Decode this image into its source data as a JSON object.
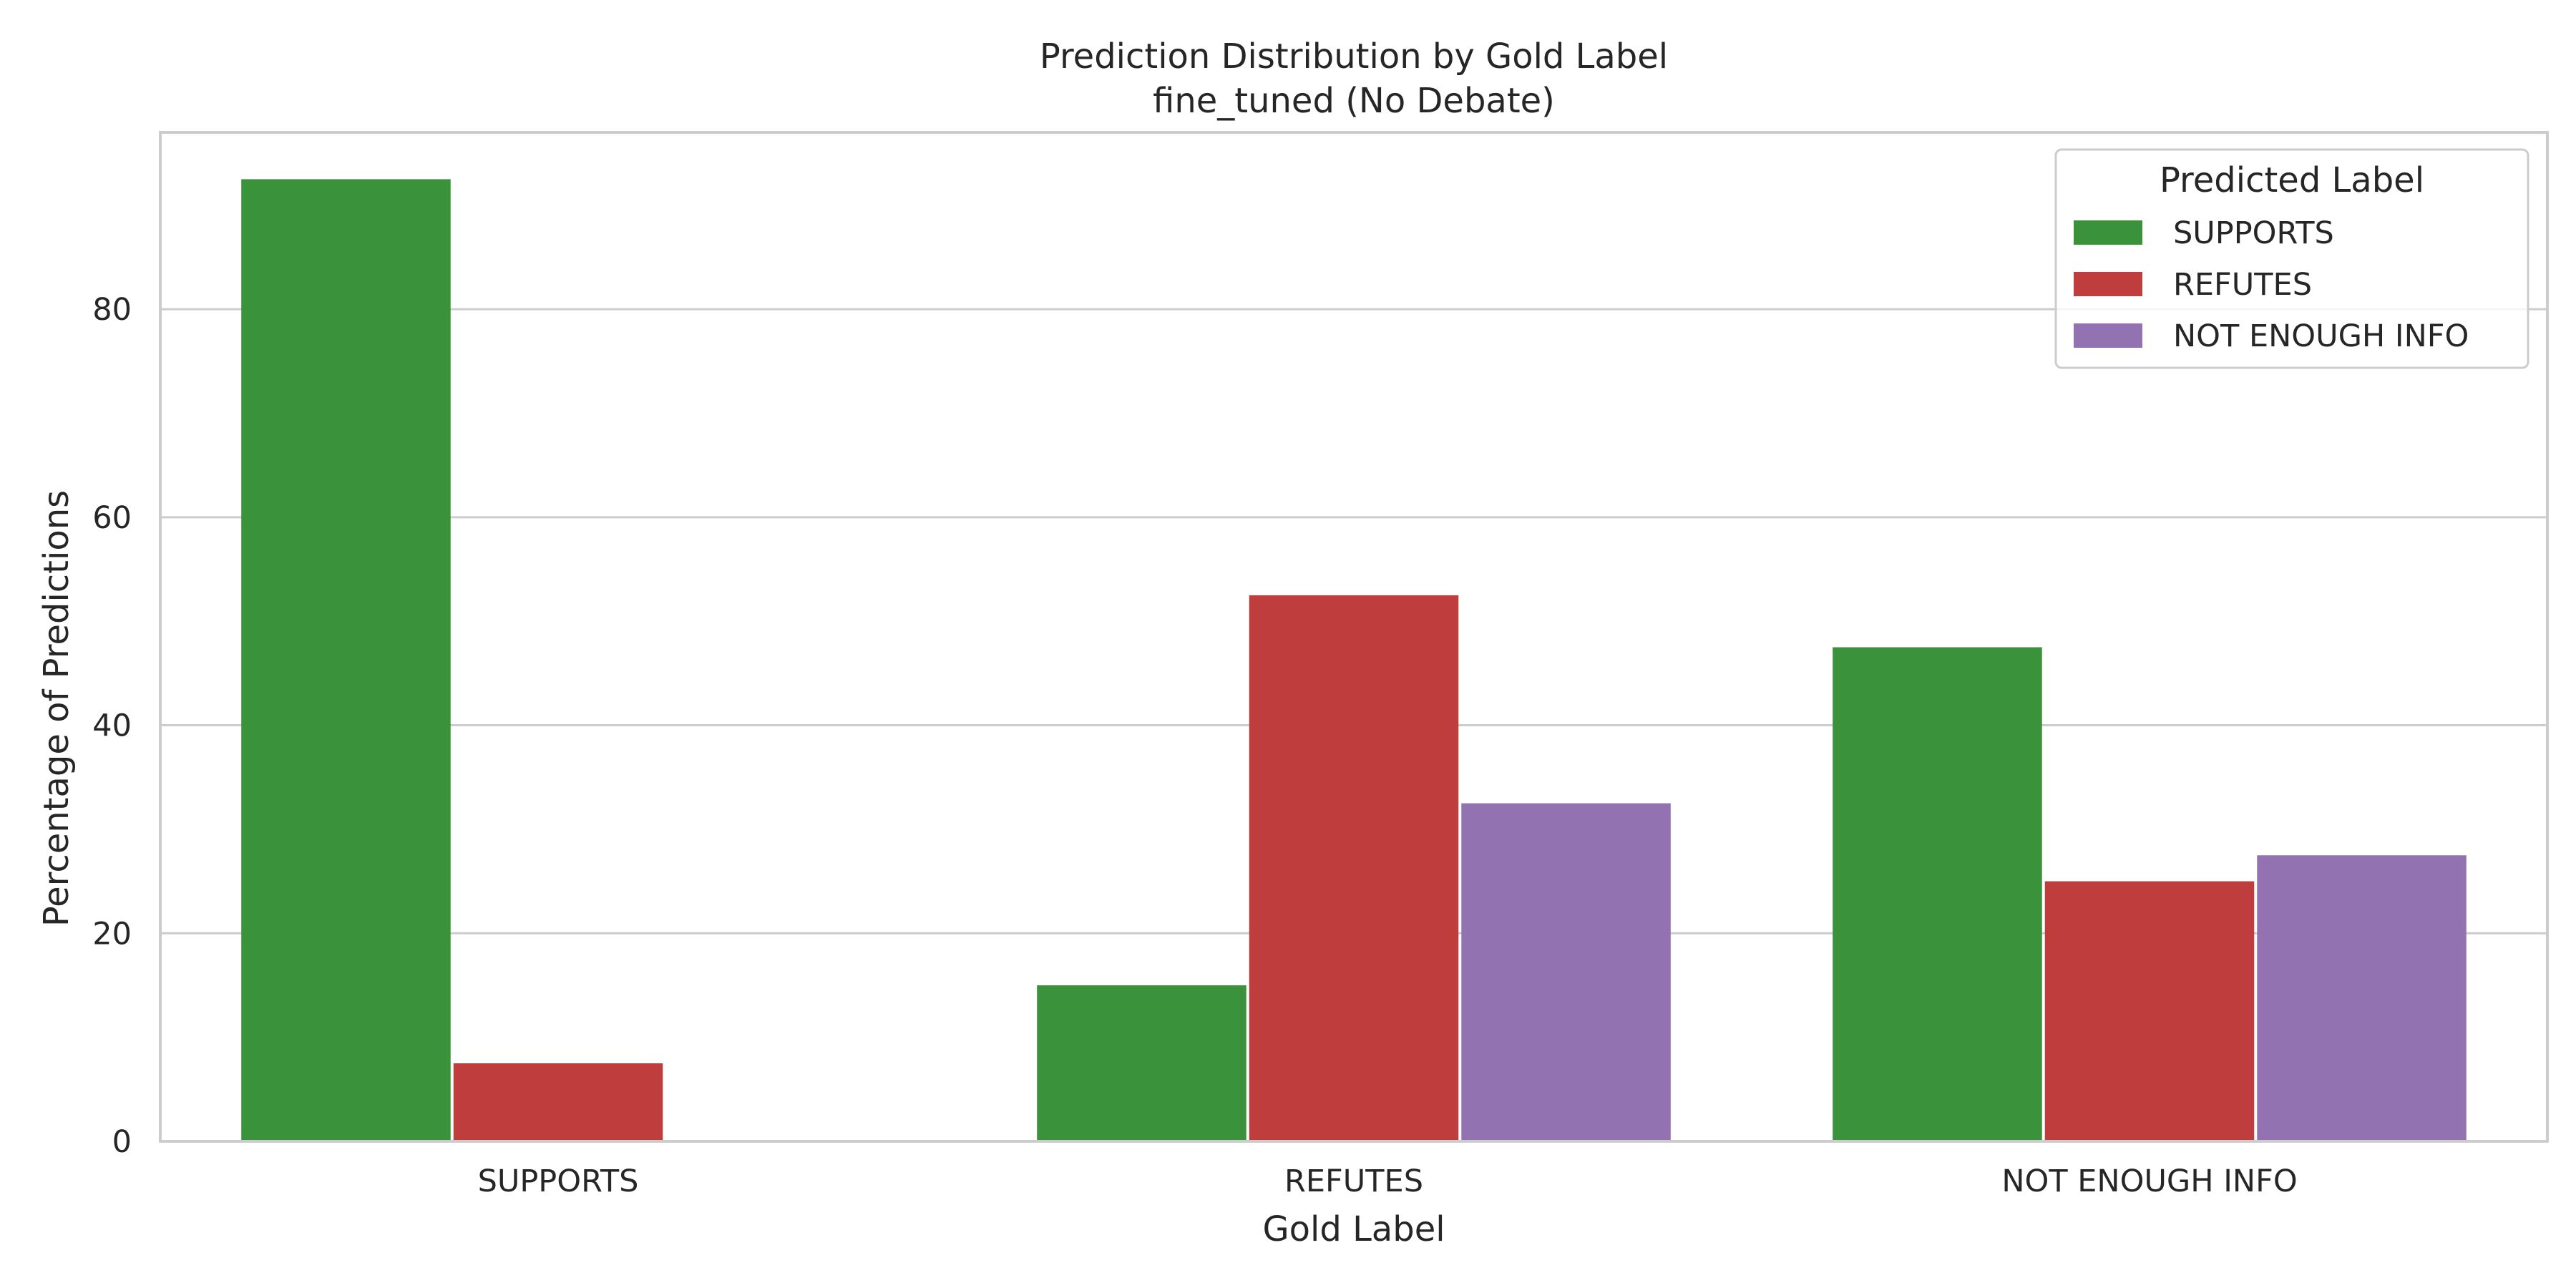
{
  "chart_data": {
    "type": "bar",
    "title": "Prediction Distribution by Gold Label",
    "subtitle": "fine_tuned (No Debate)",
    "xlabel": "Gold Label",
    "ylabel": "Percentage of Predictions",
    "categories": [
      "SUPPORTS",
      "REFUTES",
      "NOT ENOUGH INFO"
    ],
    "series": [
      {
        "name": "SUPPORTS",
        "color": "#3a923a",
        "values": [
          92.5,
          15.0,
          47.5
        ]
      },
      {
        "name": "REFUTES",
        "color": "#c03d3e",
        "values": [
          7.5,
          52.5,
          25.0
        ]
      },
      {
        "name": "NOT ENOUGH INFO",
        "color": "#9372b2",
        "values": [
          0,
          32.5,
          27.5
        ]
      }
    ],
    "ylim": [
      0,
      97
    ],
    "yticks": [
      0,
      20,
      40,
      60,
      80
    ],
    "grid": true,
    "legend": {
      "title": "Predicted Label",
      "position": "top-right"
    }
  }
}
